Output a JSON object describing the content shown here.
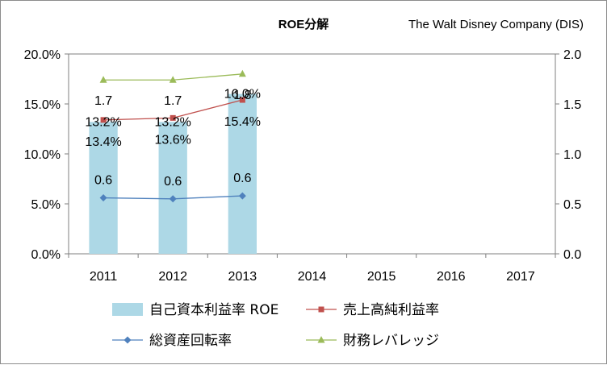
{
  "chart_data": {
    "type": "bar+line",
    "title": "ROE分解",
    "company": "The Walt Disney Company (DIS)",
    "categories": [
      "2011",
      "2012",
      "2013",
      "2014",
      "2015",
      "2016",
      "2017"
    ],
    "left_axis": {
      "min": 0,
      "max": 20,
      "step": 5,
      "tick_labels": [
        "0.0%",
        "5.0%",
        "10.0%",
        "15.0%",
        "20.0%"
      ]
    },
    "right_axis": {
      "min": 0,
      "max": 2,
      "step": 0.5,
      "tick_labels": [
        "0.0",
        "0.5",
        "1.0",
        "1.5",
        "2.0"
      ]
    },
    "series": [
      {
        "name": "自己資本利益率 ROE",
        "kind": "bar",
        "axis": "left",
        "color": "#add8e6",
        "values": [
          13.2,
          13.2,
          16.0,
          null,
          null,
          null,
          null
        ],
        "labels": [
          "13.2%",
          "13.2%",
          "16.0%"
        ]
      },
      {
        "name": "売上高純利益率",
        "kind": "line",
        "axis": "left",
        "color": "#c0504d",
        "marker": "square",
        "values": [
          13.4,
          13.6,
          15.4,
          null,
          null,
          null,
          null
        ],
        "labels": [
          "13.4%",
          "13.6%",
          "15.4%"
        ]
      },
      {
        "name": "総資産回転率",
        "kind": "line",
        "axis": "right",
        "color": "#4f81bd",
        "marker": "diamond",
        "values": [
          0.56,
          0.55,
          0.58,
          null,
          null,
          null,
          null
        ],
        "labels": [
          "0.6",
          "0.6",
          "0.6"
        ]
      },
      {
        "name": "財務レバレッジ",
        "kind": "line",
        "axis": "right",
        "color": "#9bbb59",
        "marker": "triangle",
        "values": [
          1.74,
          1.74,
          1.8,
          null,
          null,
          null,
          null
        ],
        "labels": [
          "1.7",
          "1.7",
          "1.8"
        ]
      }
    ],
    "legend": [
      "自己資本利益率 ROE",
      "売上高純利益率",
      "総資産回転率",
      "財務レバレッジ"
    ]
  }
}
